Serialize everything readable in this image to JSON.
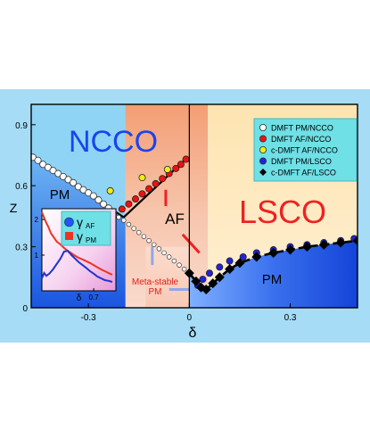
{
  "chart_data": {
    "type": "scatter",
    "xlabel": "δ",
    "ylabel": "Z",
    "xlim": [
      -0.47,
      0.5
    ],
    "ylim": [
      0,
      1.0
    ],
    "x_ticks": [
      {
        "value": -0.3,
        "label": "-0.3"
      },
      {
        "value": 0,
        "label": "0"
      },
      {
        "value": 0.3,
        "label": "0.3"
      }
    ],
    "y_ticks": [
      {
        "value": 0,
        "label": "0"
      },
      {
        "value": 0.3,
        "label": "0.3"
      },
      {
        "value": 0.6,
        "label": "0.6"
      },
      {
        "value": 0.9,
        "label": "0.9"
      }
    ],
    "region_labels": {
      "ncco": "NCCO",
      "lsco": "LSCO",
      "pm_left": "PM",
      "pm_right": "PM",
      "af": "AF",
      "metastable": "Meta-stable\nPM"
    },
    "legend": {
      "placement": "top-right",
      "entries": [
        {
          "label": "DMFT PM/NCCO",
          "color": "#ffffff",
          "marker": "circle"
        },
        {
          "label": "DMFT AF/NCCO",
          "color": "#ee1111",
          "marker": "circle"
        },
        {
          "label": "c-DMFT AF/NCCO",
          "color": "#eeee11",
          "marker": "circle"
        },
        {
          "label": "DMFT PM/LSCO",
          "color": "#2222dd",
          "marker": "circle"
        },
        {
          "label": "c-DMFT AF/LSCO",
          "color": "#000000",
          "marker": "diamond"
        }
      ]
    },
    "series": [
      {
        "name": "DMFT PM/NCCO",
        "color": "#ffffff",
        "marker": "circle",
        "x": [
          -0.465,
          -0.45,
          -0.435,
          -0.42,
          -0.405,
          -0.39,
          -0.375,
          -0.36,
          -0.345,
          -0.33,
          -0.315,
          -0.3,
          -0.285,
          -0.27,
          -0.255,
          -0.24,
          -0.225
        ],
        "y": [
          0.74,
          0.725,
          0.705,
          0.69,
          0.675,
          0.66,
          0.645,
          0.63,
          0.615,
          0.595,
          0.58,
          0.565,
          0.55,
          0.53,
          0.51,
          0.49,
          0.465
        ]
      },
      {
        "name": "DMFT PM/NCCO (meta-stable)",
        "color": "#ffffff",
        "marker": "small-circle",
        "x": [
          -0.21,
          -0.195,
          -0.18,
          -0.165,
          -0.15,
          -0.135,
          -0.12,
          -0.105,
          -0.09,
          -0.075,
          -0.06,
          -0.045,
          -0.03,
          -0.015
        ],
        "y": [
          0.445,
          0.43,
          0.41,
          0.39,
          0.37,
          0.35,
          0.33,
          0.31,
          0.29,
          0.27,
          0.25,
          0.23,
          0.21,
          0.19
        ]
      },
      {
        "name": "DMFT AF/NCCO",
        "color": "#ee1111",
        "marker": "circle",
        "x": [
          -0.2,
          -0.18,
          -0.16,
          -0.14,
          -0.12,
          -0.1,
          -0.08,
          -0.06,
          -0.04,
          -0.025,
          -0.01
        ],
        "y": [
          0.485,
          0.51,
          0.535,
          0.56,
          0.585,
          0.61,
          0.635,
          0.66,
          0.685,
          0.705,
          0.73
        ]
      },
      {
        "name": "c-DMFT AF/NCCO",
        "color": "#eeee11",
        "marker": "circle",
        "x": [
          -0.235,
          -0.14,
          -0.065
        ],
        "y": [
          0.575,
          0.64,
          0.68
        ]
      },
      {
        "name": "DMFT PM/LSCO",
        "color": "#2222dd",
        "marker": "circle",
        "x": [
          0.025,
          0.04,
          0.06,
          0.09,
          0.12,
          0.16,
          0.2,
          0.25,
          0.3,
          0.35,
          0.4,
          0.45,
          0.49
        ],
        "y": [
          0.11,
          0.14,
          0.17,
          0.2,
          0.23,
          0.25,
          0.27,
          0.285,
          0.3,
          0.31,
          0.32,
          0.33,
          0.34
        ]
      },
      {
        "name": "c-DMFT AF/LSCO",
        "color": "#000000",
        "marker": "diamond",
        "x": [
          0.0,
          0.02,
          0.035,
          0.05,
          0.07,
          0.09,
          0.12,
          0.15,
          0.2,
          0.25,
          0.3,
          0.35,
          0.4,
          0.45,
          0.5
        ],
        "y": [
          0.17,
          0.13,
          0.1,
          0.09,
          0.12,
          0.15,
          0.19,
          0.22,
          0.25,
          0.27,
          0.285,
          0.3,
          0.31,
          0.32,
          0.33
        ]
      }
    ],
    "inset": {
      "legend": [
        {
          "label": "γ",
          "sub": "AF",
          "color": "#2255ff",
          "marker": "circle"
        },
        {
          "label": "γ",
          "sub": "PM",
          "color": "#ee3322",
          "marker": "square"
        }
      ],
      "xlabel": "δ",
      "y_ticks": [
        {
          "value": 1,
          "label": "1"
        },
        {
          "value": 2,
          "label": "2"
        }
      ],
      "x_ticks": [
        {
          "value": 0.7,
          "label": "0.7"
        }
      ],
      "xlim": [
        0,
        1
      ],
      "ylim": [
        0,
        2.3
      ],
      "series": [
        {
          "name": "γ PM",
          "color": "#ee3322",
          "x": [
            0.0,
            0.03,
            0.06,
            0.09,
            0.12,
            0.16,
            0.2,
            0.25,
            0.3,
            0.35,
            0.4,
            0.45,
            0.5,
            0.55,
            0.6,
            0.65,
            0.7,
            0.75,
            0.8,
            0.85,
            0.9,
            0.95
          ],
          "y": [
            2.2,
            2.05,
            1.9,
            1.78,
            1.62,
            1.5,
            1.38,
            1.3,
            1.2,
            1.12,
            1.05,
            0.98,
            0.92,
            0.88,
            0.83,
            0.78,
            0.72,
            0.66,
            0.6,
            0.55,
            0.5,
            0.45
          ]
        },
        {
          "name": "γ AF",
          "color": "#2233cc",
          "x": [
            0.0,
            0.03,
            0.06,
            0.1,
            0.15,
            0.2,
            0.25,
            0.3,
            0.35,
            0.4,
            0.45,
            0.5,
            0.55,
            0.6,
            0.65,
            0.7,
            0.75,
            0.8,
            0.85,
            0.9,
            0.95
          ],
          "y": [
            0.35,
            0.5,
            0.42,
            0.48,
            0.6,
            0.75,
            0.9,
            1.1,
            1.12,
            1.0,
            0.9,
            0.8,
            0.72,
            0.64,
            0.55,
            0.48,
            0.4,
            0.35,
            0.3,
            0.28,
            0.25
          ]
        }
      ]
    },
    "colors": {
      "outer_background": "#a6dcf5",
      "ncco_panel": "#8fd4f5",
      "pm_left_fill": "#2a6fe8",
      "af_band": "#f3a17a",
      "lsco_panel": "#fde7b8",
      "pm_right_fill": "#2a6fe8",
      "title_blue": "#1a44ee",
      "title_red": "#ee2222"
    }
  }
}
